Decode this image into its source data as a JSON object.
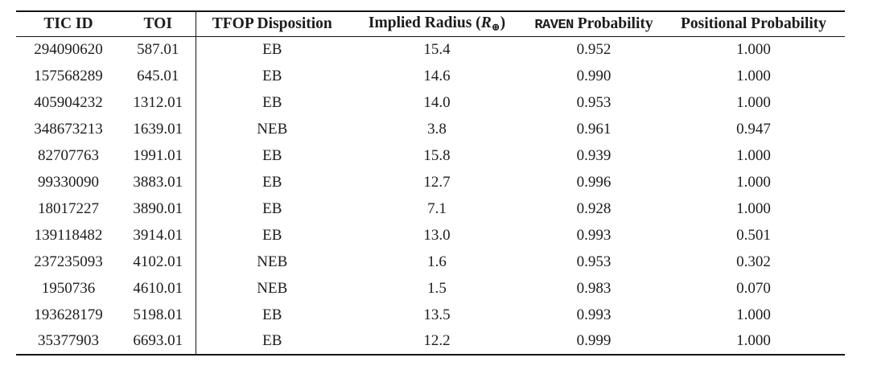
{
  "theme": {
    "bg": "#ffffff",
    "text": "#1c1c1c",
    "rule": "#141414"
  },
  "table": {
    "headers": {
      "tic_id": "TIC ID",
      "toi": "TOI",
      "tfop_disposition": "TFOP Disposition",
      "implied_radius_prefix": "Implied Radius (",
      "implied_radius_symbol": "R",
      "implied_radius_subscript": "⊕",
      "implied_radius_suffix": ")",
      "raven_code": "RAVEN",
      "raven_rest": "Probability",
      "positional": "Positional Probability"
    },
    "rows": [
      {
        "tic_id": "294090620",
        "toi": "587.01",
        "tfop_disposition": "EB",
        "implied_radius": "15.4",
        "raven_probability": "0.952",
        "positional_probability": "1.000"
      },
      {
        "tic_id": "157568289",
        "toi": "645.01",
        "tfop_disposition": "EB",
        "implied_radius": "14.6",
        "raven_probability": "0.990",
        "positional_probability": "1.000"
      },
      {
        "tic_id": "405904232",
        "toi": "1312.01",
        "tfop_disposition": "EB",
        "implied_radius": "14.0",
        "raven_probability": "0.953",
        "positional_probability": "1.000"
      },
      {
        "tic_id": "348673213",
        "toi": "1639.01",
        "tfop_disposition": "NEB",
        "implied_radius": "3.8",
        "raven_probability": "0.961",
        "positional_probability": "0.947"
      },
      {
        "tic_id": "82707763",
        "toi": "1991.01",
        "tfop_disposition": "EB",
        "implied_radius": "15.8",
        "raven_probability": "0.939",
        "positional_probability": "1.000"
      },
      {
        "tic_id": "99330090",
        "toi": "3883.01",
        "tfop_disposition": "EB",
        "implied_radius": "12.7",
        "raven_probability": "0.996",
        "positional_probability": "1.000"
      },
      {
        "tic_id": "18017227",
        "toi": "3890.01",
        "tfop_disposition": "EB",
        "implied_radius": "7.1",
        "raven_probability": "0.928",
        "positional_probability": "1.000"
      },
      {
        "tic_id": "139118482",
        "toi": "3914.01",
        "tfop_disposition": "EB",
        "implied_radius": "13.0",
        "raven_probability": "0.993",
        "positional_probability": "0.501"
      },
      {
        "tic_id": "237235093",
        "toi": "4102.01",
        "tfop_disposition": "NEB",
        "implied_radius": "1.6",
        "raven_probability": "0.953",
        "positional_probability": "0.302"
      },
      {
        "tic_id": "1950736",
        "toi": "4610.01",
        "tfop_disposition": "NEB",
        "implied_radius": "1.5",
        "raven_probability": "0.983",
        "positional_probability": "0.070"
      },
      {
        "tic_id": "193628179",
        "toi": "5198.01",
        "tfop_disposition": "EB",
        "implied_radius": "13.5",
        "raven_probability": "0.993",
        "positional_probability": "1.000"
      },
      {
        "tic_id": "35377903",
        "toi": "6693.01",
        "tfop_disposition": "EB",
        "implied_radius": "12.2",
        "raven_probability": "0.999",
        "positional_probability": "1.000"
      }
    ]
  }
}
